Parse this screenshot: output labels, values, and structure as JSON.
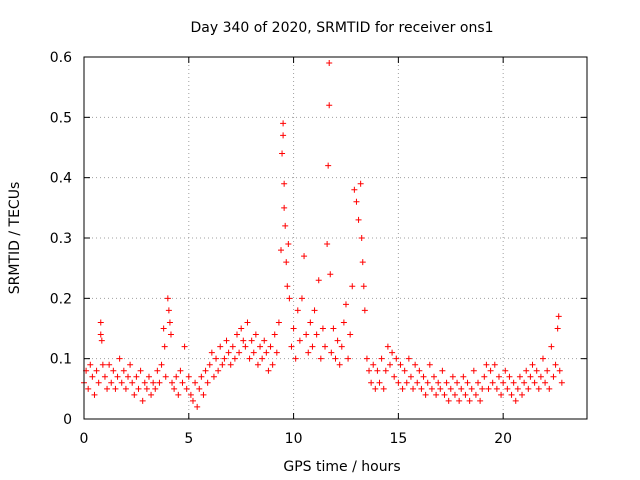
{
  "chart_data": {
    "type": "scatter",
    "title": "Day 340 of 2020, SRMTID for receiver ons1",
    "xlabel": "GPS time / hours",
    "ylabel": "SRMTID / TECUs",
    "xlim": [
      0,
      24
    ],
    "ylim": [
      0,
      0.6
    ],
    "xticks": [
      "0",
      "5",
      "10",
      "15",
      "20"
    ],
    "yticks": [
      "0",
      "0.1",
      "0.2",
      "0.3",
      "0.4",
      "0.5",
      "0.6"
    ],
    "grid": true,
    "marker": "plus",
    "color": "#ff0000",
    "series": [
      {
        "name": "SRMTID ons1",
        "points": [
          [
            0.0,
            0.06
          ],
          [
            0.1,
            0.08
          ],
          [
            0.2,
            0.05
          ],
          [
            0.3,
            0.09
          ],
          [
            0.4,
            0.07
          ],
          [
            0.5,
            0.04
          ],
          [
            0.6,
            0.08
          ],
          [
            0.7,
            0.06
          ],
          [
            0.8,
            0.14
          ],
          [
            0.8,
            0.16
          ],
          [
            0.85,
            0.13
          ],
          [
            0.9,
            0.09
          ],
          [
            1.0,
            0.07
          ],
          [
            1.1,
            0.05
          ],
          [
            1.2,
            0.09
          ],
          [
            1.3,
            0.06
          ],
          [
            1.4,
            0.08
          ],
          [
            1.5,
            0.05
          ],
          [
            1.6,
            0.07
          ],
          [
            1.7,
            0.1
          ],
          [
            1.8,
            0.06
          ],
          [
            1.9,
            0.08
          ],
          [
            2.0,
            0.05
          ],
          [
            2.1,
            0.07
          ],
          [
            2.2,
            0.09
          ],
          [
            2.3,
            0.06
          ],
          [
            2.4,
            0.04
          ],
          [
            2.5,
            0.07
          ],
          [
            2.6,
            0.05
          ],
          [
            2.7,
            0.08
          ],
          [
            2.8,
            0.03
          ],
          [
            2.9,
            0.06
          ],
          [
            3.0,
            0.05
          ],
          [
            3.1,
            0.07
          ],
          [
            3.2,
            0.04
          ],
          [
            3.3,
            0.06
          ],
          [
            3.4,
            0.05
          ],
          [
            3.5,
            0.08
          ],
          [
            3.6,
            0.06
          ],
          [
            3.7,
            0.09
          ],
          [
            3.8,
            0.15
          ],
          [
            3.85,
            0.12
          ],
          [
            3.9,
            0.07
          ],
          [
            4.0,
            0.2
          ],
          [
            4.05,
            0.18
          ],
          [
            4.1,
            0.16
          ],
          [
            4.15,
            0.14
          ],
          [
            4.2,
            0.06
          ],
          [
            4.3,
            0.05
          ],
          [
            4.4,
            0.07
          ],
          [
            4.5,
            0.04
          ],
          [
            4.6,
            0.08
          ],
          [
            4.7,
            0.06
          ],
          [
            4.8,
            0.12
          ],
          [
            4.9,
            0.05
          ],
          [
            5.0,
            0.07
          ],
          [
            5.1,
            0.04
          ],
          [
            5.2,
            0.03
          ],
          [
            5.3,
            0.06
          ],
          [
            5.4,
            0.02
          ],
          [
            5.5,
            0.05
          ],
          [
            5.6,
            0.07
          ],
          [
            5.7,
            0.04
          ],
          [
            5.8,
            0.08
          ],
          [
            5.9,
            0.06
          ],
          [
            6.0,
            0.09
          ],
          [
            6.1,
            0.11
          ],
          [
            6.2,
            0.07
          ],
          [
            6.3,
            0.1
          ],
          [
            6.4,
            0.08
          ],
          [
            6.5,
            0.12
          ],
          [
            6.6,
            0.09
          ],
          [
            6.7,
            0.1
          ],
          [
            6.8,
            0.13
          ],
          [
            6.9,
            0.11
          ],
          [
            7.0,
            0.09
          ],
          [
            7.1,
            0.12
          ],
          [
            7.2,
            0.1
          ],
          [
            7.3,
            0.14
          ],
          [
            7.4,
            0.11
          ],
          [
            7.5,
            0.15
          ],
          [
            7.6,
            0.13
          ],
          [
            7.7,
            0.12
          ],
          [
            7.8,
            0.16
          ],
          [
            7.9,
            0.1
          ],
          [
            8.0,
            0.13
          ],
          [
            8.1,
            0.11
          ],
          [
            8.2,
            0.14
          ],
          [
            8.3,
            0.09
          ],
          [
            8.4,
            0.12
          ],
          [
            8.5,
            0.1
          ],
          [
            8.6,
            0.13
          ],
          [
            8.7,
            0.11
          ],
          [
            8.8,
            0.08
          ],
          [
            8.9,
            0.12
          ],
          [
            9.0,
            0.09
          ],
          [
            9.1,
            0.14
          ],
          [
            9.2,
            0.11
          ],
          [
            9.3,
            0.16
          ],
          [
            9.4,
            0.28
          ],
          [
            9.45,
            0.44
          ],
          [
            9.5,
            0.49
          ],
          [
            9.5,
            0.47
          ],
          [
            9.55,
            0.39
          ],
          [
            9.55,
            0.35
          ],
          [
            9.6,
            0.32
          ],
          [
            9.65,
            0.26
          ],
          [
            9.7,
            0.22
          ],
          [
            9.75,
            0.29
          ],
          [
            9.8,
            0.2
          ],
          [
            9.9,
            0.12
          ],
          [
            10.0,
            0.15
          ],
          [
            10.1,
            0.1
          ],
          [
            10.2,
            0.18
          ],
          [
            10.3,
            0.13
          ],
          [
            10.4,
            0.2
          ],
          [
            10.5,
            0.27
          ],
          [
            10.6,
            0.14
          ],
          [
            10.7,
            0.11
          ],
          [
            10.8,
            0.16
          ],
          [
            10.9,
            0.12
          ],
          [
            11.0,
            0.18
          ],
          [
            11.1,
            0.14
          ],
          [
            11.2,
            0.23
          ],
          [
            11.3,
            0.1
          ],
          [
            11.4,
            0.15
          ],
          [
            11.5,
            0.12
          ],
          [
            11.6,
            0.29
          ],
          [
            11.65,
            0.42
          ],
          [
            11.7,
            0.52
          ],
          [
            11.7,
            0.59
          ],
          [
            11.75,
            0.24
          ],
          [
            11.8,
            0.11
          ],
          [
            11.9,
            0.15
          ],
          [
            12.0,
            0.1
          ],
          [
            12.1,
            0.13
          ],
          [
            12.2,
            0.09
          ],
          [
            12.3,
            0.12
          ],
          [
            12.4,
            0.16
          ],
          [
            12.5,
            0.19
          ],
          [
            12.6,
            0.1
          ],
          [
            12.7,
            0.14
          ],
          [
            12.8,
            0.22
          ],
          [
            12.9,
            0.38
          ],
          [
            13.0,
            0.36
          ],
          [
            13.1,
            0.33
          ],
          [
            13.2,
            0.39
          ],
          [
            13.25,
            0.3
          ],
          [
            13.3,
            0.26
          ],
          [
            13.35,
            0.22
          ],
          [
            13.4,
            0.18
          ],
          [
            13.5,
            0.1
          ],
          [
            13.6,
            0.08
          ],
          [
            13.7,
            0.06
          ],
          [
            13.8,
            0.09
          ],
          [
            13.9,
            0.05
          ],
          [
            14.0,
            0.08
          ],
          [
            14.1,
            0.06
          ],
          [
            14.2,
            0.1
          ],
          [
            14.3,
            0.05
          ],
          [
            14.4,
            0.08
          ],
          [
            14.5,
            0.12
          ],
          [
            14.6,
            0.09
          ],
          [
            14.7,
            0.11
          ],
          [
            14.8,
            0.07
          ],
          [
            14.9,
            0.1
          ],
          [
            15.0,
            0.06
          ],
          [
            15.1,
            0.09
          ],
          [
            15.2,
            0.05
          ],
          [
            15.3,
            0.08
          ],
          [
            15.4,
            0.06
          ],
          [
            15.5,
            0.1
          ],
          [
            15.6,
            0.07
          ],
          [
            15.7,
            0.05
          ],
          [
            15.8,
            0.09
          ],
          [
            15.9,
            0.06
          ],
          [
            16.0,
            0.08
          ],
          [
            16.1,
            0.05
          ],
          [
            16.2,
            0.07
          ],
          [
            16.3,
            0.04
          ],
          [
            16.4,
            0.06
          ],
          [
            16.5,
            0.09
          ],
          [
            16.6,
            0.05
          ],
          [
            16.7,
            0.07
          ],
          [
            16.8,
            0.04
          ],
          [
            16.9,
            0.06
          ],
          [
            17.0,
            0.05
          ],
          [
            17.1,
            0.08
          ],
          [
            17.2,
            0.04
          ],
          [
            17.3,
            0.06
          ],
          [
            17.4,
            0.03
          ],
          [
            17.5,
            0.05
          ],
          [
            17.6,
            0.07
          ],
          [
            17.7,
            0.04
          ],
          [
            17.8,
            0.06
          ],
          [
            17.9,
            0.03
          ],
          [
            18.0,
            0.05
          ],
          [
            18.1,
            0.07
          ],
          [
            18.2,
            0.04
          ],
          [
            18.3,
            0.06
          ],
          [
            18.4,
            0.03
          ],
          [
            18.5,
            0.05
          ],
          [
            18.6,
            0.08
          ],
          [
            18.7,
            0.04
          ],
          [
            18.8,
            0.06
          ],
          [
            18.9,
            0.03
          ],
          [
            19.0,
            0.05
          ],
          [
            19.1,
            0.07
          ],
          [
            19.2,
            0.09
          ],
          [
            19.3,
            0.05
          ],
          [
            19.4,
            0.08
          ],
          [
            19.5,
            0.06
          ],
          [
            19.6,
            0.09
          ],
          [
            19.7,
            0.05
          ],
          [
            19.8,
            0.07
          ],
          [
            19.9,
            0.04
          ],
          [
            20.0,
            0.06
          ],
          [
            20.1,
            0.08
          ],
          [
            20.2,
            0.05
          ],
          [
            20.3,
            0.07
          ],
          [
            20.4,
            0.04
          ],
          [
            20.5,
            0.06
          ],
          [
            20.6,
            0.03
          ],
          [
            20.7,
            0.05
          ],
          [
            20.8,
            0.07
          ],
          [
            20.9,
            0.04
          ],
          [
            21.0,
            0.06
          ],
          [
            21.1,
            0.08
          ],
          [
            21.2,
            0.05
          ],
          [
            21.3,
            0.07
          ],
          [
            21.4,
            0.09
          ],
          [
            21.5,
            0.06
          ],
          [
            21.6,
            0.08
          ],
          [
            21.7,
            0.05
          ],
          [
            21.8,
            0.07
          ],
          [
            21.9,
            0.1
          ],
          [
            22.0,
            0.06
          ],
          [
            22.1,
            0.08
          ],
          [
            22.2,
            0.05
          ],
          [
            22.3,
            0.12
          ],
          [
            22.4,
            0.07
          ],
          [
            22.5,
            0.09
          ],
          [
            22.6,
            0.15
          ],
          [
            22.65,
            0.17
          ],
          [
            22.7,
            0.08
          ],
          [
            22.8,
            0.06
          ]
        ]
      }
    ]
  }
}
